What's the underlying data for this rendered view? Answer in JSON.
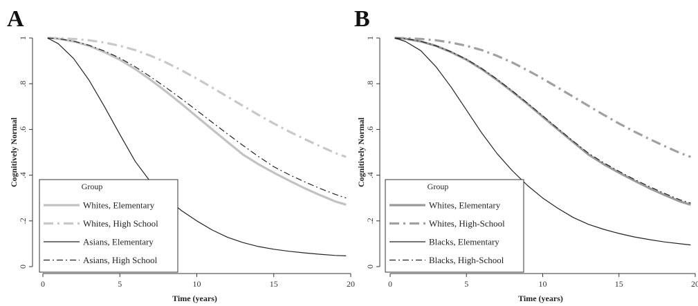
{
  "chart_data": [
    {
      "type": "line",
      "panel_label": "A",
      "xlabel": "Time (years)",
      "ylabel": "Cognitively Normal",
      "xlim": [
        0,
        20
      ],
      "ylim": [
        0,
        1
      ],
      "x_ticks": [
        "0",
        "5",
        "10",
        "15",
        "20"
      ],
      "y_ticks": [
        "0",
        ".2",
        ".4",
        ".6",
        ".8",
        "1"
      ],
      "grid": false,
      "legend": {
        "title": "Group",
        "placement": "bottom-left",
        "entries": [
          "Whites, Elementary",
          "Whites, High School",
          "Asians, Elementary",
          "Asians, High School"
        ]
      },
      "x": [
        0.3,
        1,
        2,
        3,
        4,
        5,
        6,
        7,
        8,
        9,
        10,
        11,
        12,
        13,
        14,
        15,
        16,
        17,
        18,
        19,
        19.7
      ],
      "series": [
        {
          "name": "Whites, Elementary",
          "color": "#c2c2c2",
          "style": "solid-thick",
          "values": [
            1.0,
            0.997,
            0.985,
            0.966,
            0.938,
            0.905,
            0.864,
            0.817,
            0.766,
            0.712,
            0.656,
            0.6,
            0.545,
            0.49,
            0.448,
            0.411,
            0.376,
            0.343,
            0.313,
            0.285,
            0.271
          ]
        },
        {
          "name": "Whites, High School",
          "color": "#c8c8c8",
          "style": "dashdot-thick",
          "values": [
            1.0,
            0.999,
            0.996,
            0.99,
            0.98,
            0.966,
            0.947,
            0.922,
            0.893,
            0.859,
            0.822,
            0.783,
            0.743,
            0.703,
            0.664,
            0.626,
            0.591,
            0.558,
            0.527,
            0.497,
            0.48
          ]
        },
        {
          "name": "Asians, Elementary",
          "color": "#222222",
          "style": "solid-thin",
          "values": [
            1.0,
            0.975,
            0.91,
            0.815,
            0.7,
            0.578,
            0.46,
            0.37,
            0.3,
            0.245,
            0.2,
            0.16,
            0.128,
            0.105,
            0.088,
            0.076,
            0.067,
            0.06,
            0.054,
            0.049,
            0.047
          ]
        },
        {
          "name": "Asians, High School",
          "color": "#222222",
          "style": "dashdot-thin",
          "values": [
            1.0,
            0.997,
            0.986,
            0.968,
            0.943,
            0.912,
            0.874,
            0.83,
            0.783,
            0.734,
            0.683,
            0.631,
            0.58,
            0.53,
            0.482,
            0.437,
            0.402,
            0.371,
            0.342,
            0.316,
            0.3
          ]
        }
      ]
    },
    {
      "type": "line",
      "panel_label": "B",
      "xlabel": "Time (years)",
      "ylabel": "Cognitively Normal",
      "xlim": [
        0,
        20
      ],
      "ylim": [
        0,
        1
      ],
      "x_ticks": [
        "0",
        "5",
        "10",
        "15",
        "20"
      ],
      "y_ticks": [
        "0",
        ".2",
        ".4",
        ".6",
        ".8",
        "1"
      ],
      "grid": false,
      "legend": {
        "title": "Group",
        "placement": "bottom-left",
        "entries": [
          "Whites, Elementary",
          "Whites, High-School",
          "Blacks, Elementary",
          "Blacks, High-School"
        ]
      },
      "x": [
        0.3,
        1,
        2,
        3,
        4,
        5,
        6,
        7,
        8,
        9,
        10,
        11,
        12,
        13,
        14,
        15,
        16,
        17,
        18,
        19,
        19.7
      ],
      "series": [
        {
          "name": "Whites, Elementary",
          "color": "#9a9a9a",
          "style": "solid-thick",
          "values": [
            1.0,
            0.997,
            0.985,
            0.966,
            0.938,
            0.905,
            0.864,
            0.817,
            0.766,
            0.712,
            0.656,
            0.6,
            0.545,
            0.49,
            0.448,
            0.411,
            0.376,
            0.343,
            0.313,
            0.285,
            0.271
          ]
        },
        {
          "name": "Whites, High-School",
          "color": "#a0a0a0",
          "style": "dashdot-thick",
          "values": [
            1.0,
            0.999,
            0.996,
            0.99,
            0.98,
            0.966,
            0.947,
            0.922,
            0.893,
            0.859,
            0.822,
            0.783,
            0.743,
            0.703,
            0.664,
            0.626,
            0.591,
            0.558,
            0.527,
            0.497,
            0.48
          ]
        },
        {
          "name": "Blacks, Elementary",
          "color": "#222222",
          "style": "solid-thin",
          "values": [
            1.0,
            0.985,
            0.945,
            0.875,
            0.785,
            0.685,
            0.585,
            0.495,
            0.42,
            0.355,
            0.3,
            0.255,
            0.215,
            0.185,
            0.163,
            0.145,
            0.13,
            0.118,
            0.108,
            0.1,
            0.095
          ]
        },
        {
          "name": "Blacks, High-School",
          "color": "#222222",
          "style": "dashdot-thin",
          "values": [
            1.0,
            0.997,
            0.986,
            0.966,
            0.94,
            0.907,
            0.867,
            0.82,
            0.769,
            0.715,
            0.66,
            0.604,
            0.549,
            0.496,
            0.454,
            0.417,
            0.382,
            0.35,
            0.32,
            0.292,
            0.278
          ]
        }
      ]
    }
  ]
}
